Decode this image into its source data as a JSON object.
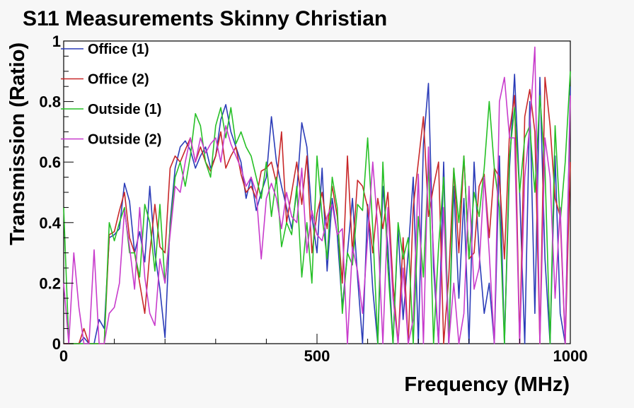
{
  "chart_data": {
    "type": "line",
    "title": "S11 Measurements Skinny Christian",
    "xlabel": "Frequency (MHz)",
    "ylabel": "Transmission (Ratio)",
    "xlim": [
      0,
      1000
    ],
    "ylim": [
      0,
      1
    ],
    "x_ticks": [
      0,
      500,
      1000
    ],
    "x_tick_labels": [
      "0",
      "500",
      "1000"
    ],
    "y_ticks": [
      0,
      0.2,
      0.4,
      0.6,
      0.8,
      1
    ],
    "y_tick_labels": [
      "0",
      "0.2",
      "0.4",
      "0.6",
      "0.8",
      "1"
    ],
    "grid": false,
    "legend_position": "top-left",
    "x": [
      0,
      10,
      20,
      30,
      40,
      50,
      60,
      70,
      80,
      90,
      100,
      110,
      120,
      130,
      140,
      150,
      160,
      170,
      180,
      190,
      200,
      210,
      220,
      230,
      240,
      250,
      260,
      270,
      280,
      290,
      300,
      310,
      320,
      330,
      340,
      350,
      360,
      370,
      380,
      390,
      400,
      410,
      420,
      430,
      440,
      450,
      460,
      470,
      480,
      490,
      500,
      510,
      520,
      530,
      540,
      550,
      560,
      570,
      580,
      590,
      600,
      610,
      620,
      630,
      640,
      650,
      660,
      670,
      680,
      690,
      700,
      710,
      720,
      730,
      740,
      750,
      760,
      770,
      780,
      790,
      800,
      810,
      820,
      830,
      840,
      850,
      860,
      870,
      880,
      890,
      900,
      910,
      920,
      930,
      940,
      950,
      960,
      970,
      980,
      990,
      1000
    ],
    "series": [
      {
        "name": "Office (1)",
        "color": "#2b3cb8",
        "values": [
          0.0,
          0.0,
          0.0,
          0.0,
          0.02,
          0.0,
          0.0,
          0.08,
          0.05,
          0.35,
          0.36,
          0.38,
          0.53,
          0.47,
          0.3,
          0.37,
          0.27,
          0.52,
          0.3,
          0.18,
          0.02,
          0.4,
          0.58,
          0.65,
          0.67,
          0.64,
          0.58,
          0.62,
          0.65,
          0.58,
          0.62,
          0.74,
          0.79,
          0.7,
          0.65,
          0.6,
          0.48,
          0.55,
          0.44,
          0.5,
          0.55,
          0.75,
          0.6,
          0.52,
          0.45,
          0.38,
          0.5,
          0.73,
          0.65,
          0.42,
          0.3,
          0.58,
          0.24,
          0.48,
          0.36,
          0.12,
          0.3,
          0.48,
          0.22,
          0.0,
          0.46,
          0.18,
          0.0,
          0.52,
          0.32,
          0.0,
          0.38,
          0.08,
          0.3,
          0.55,
          0.0,
          0.66,
          0.86,
          0.25,
          0.0,
          0.6,
          0.0,
          0.52,
          0.15,
          0.48,
          0.0,
          0.6,
          0.3,
          0.1,
          0.2,
          0.0,
          0.62,
          0.0,
          0.58,
          0.89,
          0.5,
          0.0,
          0.8,
          0.1,
          0.88,
          0.28,
          0.0,
          0.62,
          0.1,
          0.0,
          0.85
        ]
      },
      {
        "name": "Office (2)",
        "color": "#c8282a",
        "values": [
          0.0,
          0.0,
          0.0,
          0.0,
          0.05,
          0.0,
          0.0,
          0.0,
          0.0,
          0.36,
          0.37,
          0.44,
          0.5,
          0.35,
          0.3,
          0.2,
          0.1,
          0.3,
          0.46,
          0.32,
          0.3,
          0.58,
          0.62,
          0.6,
          0.64,
          0.68,
          0.6,
          0.65,
          0.6,
          0.57,
          0.62,
          0.7,
          0.58,
          0.62,
          0.65,
          0.56,
          0.5,
          0.52,
          0.48,
          0.57,
          0.58,
          0.6,
          0.53,
          0.7,
          0.4,
          0.5,
          0.6,
          0.46,
          0.62,
          0.3,
          0.43,
          0.5,
          0.38,
          0.52,
          0.42,
          0.2,
          0.62,
          0.3,
          0.54,
          0.52,
          0.45,
          0.3,
          0.48,
          0.38,
          0.5,
          0.2,
          0.0,
          0.35,
          0.0,
          0.45,
          0.6,
          0.75,
          0.42,
          0.52,
          0.6,
          0.0,
          0.22,
          0.58,
          0.3,
          0.62,
          0.28,
          0.3,
          0.52,
          0.56,
          0.35,
          0.58,
          0.55,
          0.28,
          0.7,
          0.82,
          0.0,
          0.75,
          0.84,
          0.7,
          0.0,
          0.88,
          0.72,
          0.48,
          0.42,
          0.0,
          0.6
        ]
      },
      {
        "name": "Outside (1)",
        "color": "#26c026",
        "values": [
          0.45,
          0.0,
          0.0,
          0.0,
          0.0,
          0.0,
          0.0,
          0.0,
          0.0,
          0.4,
          0.34,
          0.4,
          0.45,
          0.3,
          0.3,
          0.22,
          0.46,
          0.4,
          0.24,
          0.46,
          0.2,
          0.38,
          0.55,
          0.6,
          0.52,
          0.62,
          0.76,
          0.72,
          0.6,
          0.55,
          0.72,
          0.78,
          0.68,
          0.78,
          0.66,
          0.7,
          0.65,
          0.62,
          0.55,
          0.48,
          0.6,
          0.42,
          0.55,
          0.32,
          0.4,
          0.36,
          0.52,
          0.22,
          0.4,
          0.2,
          0.62,
          0.42,
          0.28,
          0.55,
          0.45,
          0.1,
          0.3,
          0.26,
          0.46,
          0.44,
          0.68,
          0.38,
          0.0,
          0.6,
          0.25,
          0.0,
          0.4,
          0.28,
          0.35,
          0.0,
          0.42,
          0.22,
          0.6,
          0.0,
          0.32,
          0.55,
          0.0,
          0.58,
          0.4,
          0.62,
          0.28,
          0.5,
          0.42,
          0.58,
          0.8,
          0.58,
          0.45,
          0.0,
          0.62,
          0.78,
          0.5,
          0.68,
          0.72,
          0.5,
          0.82,
          0.58,
          0.0,
          0.72,
          0.4,
          0.6,
          0.9
        ]
      },
      {
        "name": "Outside (2)",
        "color": "#c83ccc",
        "values": [
          0.2,
          0.0,
          0.3,
          0.12,
          0.0,
          0.0,
          0.31,
          0.0,
          0.0,
          0.1,
          0.12,
          0.2,
          0.44,
          0.32,
          0.18,
          0.45,
          0.22,
          0.1,
          0.06,
          0.28,
          0.2,
          0.36,
          0.52,
          0.5,
          0.6,
          0.68,
          0.6,
          0.68,
          0.63,
          0.66,
          0.68,
          0.6,
          0.72,
          0.66,
          0.62,
          0.58,
          0.52,
          0.55,
          0.5,
          0.28,
          0.48,
          0.53,
          0.48,
          0.38,
          0.5,
          0.42,
          0.4,
          0.58,
          0.3,
          0.44,
          0.36,
          0.34,
          0.42,
          0.46,
          0.36,
          0.38,
          0.0,
          0.32,
          0.24,
          0.1,
          0.35,
          0.6,
          0.38,
          0.0,
          0.45,
          0.15,
          0.0,
          0.25,
          0.0,
          0.08,
          0.56,
          0.0,
          0.65,
          0.3,
          0.0,
          0.45,
          0.0,
          0.2,
          0.0,
          0.1,
          0.52,
          0.18,
          0.25,
          0.55,
          0.3,
          0.0,
          0.8,
          0.88,
          0.68,
          0.68,
          0.0,
          0.55,
          0.72,
          0.98,
          0.0,
          0.68,
          0.55,
          0.15,
          0.45,
          0.0,
          0.82
        ]
      }
    ]
  }
}
